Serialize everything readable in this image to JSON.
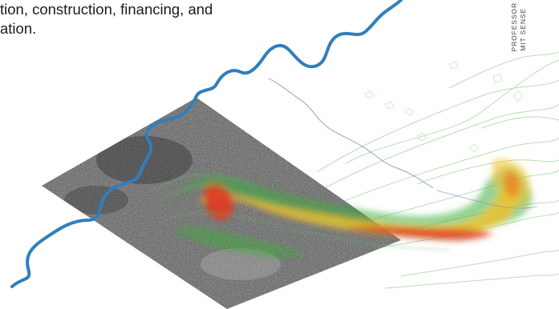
{
  "article": {
    "text_lines": [
      "tion, construction, financing, and",
      "ation."
    ]
  },
  "sidebar": {
    "line1": "PROFESSOR",
    "line2": "MIT SENSE"
  },
  "figure": {
    "description_icon": "map-visualization-icon",
    "colors": {
      "river": "#2f7fbf",
      "heat_high": "#e23a1f",
      "heat_mid": "#f3c12a",
      "heat_low": "#3cae3a",
      "photo": "#4a4a4a"
    }
  }
}
